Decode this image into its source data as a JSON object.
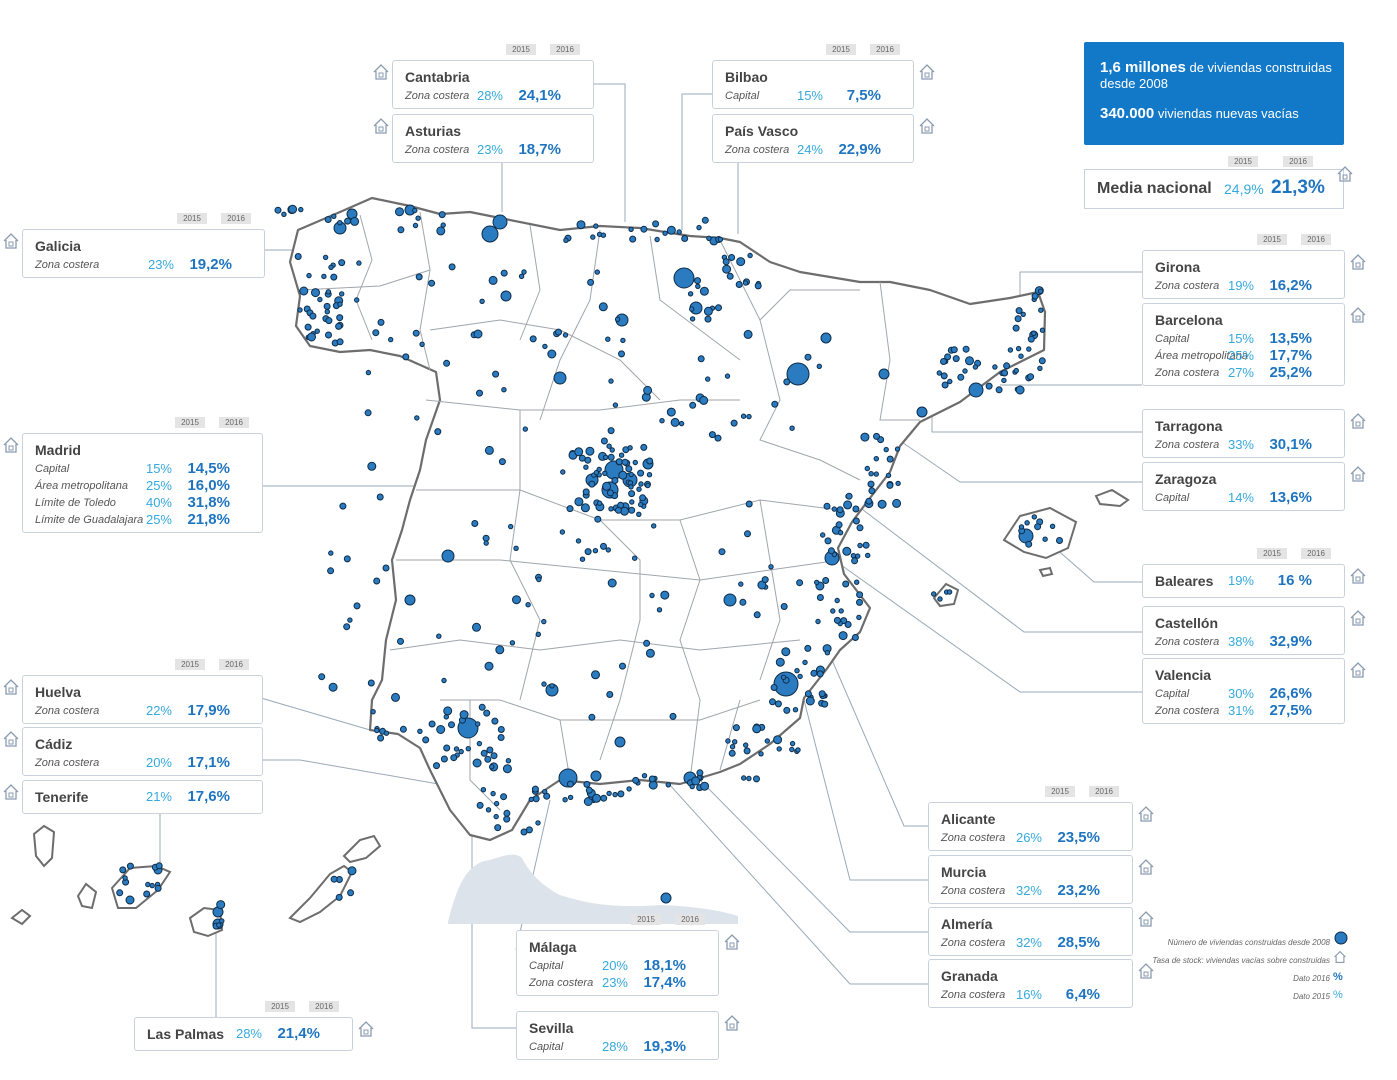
{
  "year_labels": {
    "y2015": "2015",
    "y2016": "2016"
  },
  "summary": {
    "line1_bold": "1,6 millones",
    "line1_rest": " de viviendas construidas desde 2008",
    "line2_bold": "340.000",
    "line2_rest": " viviendas nuevas vacías"
  },
  "national": {
    "label": "Media nacional",
    "v2015": "24,9%",
    "v2016": "21,3%"
  },
  "legend": {
    "dots": "Número de viviendas construidas desde 2008",
    "stock": "Tasa de stock: viviendas vacías sobre construidas",
    "d2016": "Dato 2016",
    "d2015": "Dato 2015",
    "pct": "%"
  },
  "colors": {
    "dot": "#2b7bc0",
    "dot_stroke": "#0d2c48",
    "v2015": "#36a9dc",
    "v2016": "#1f74c0",
    "box": "#1278c8",
    "lines": "#9aa9b8",
    "border": "#6d6d6d"
  },
  "regions": [
    {
      "name": "Cantabria",
      "rows": [
        {
          "label": "Zona costera",
          "v2015": "28%",
          "v2016": "24,1%"
        }
      ]
    },
    {
      "name": "Asturias",
      "rows": [
        {
          "label": "Zona costera",
          "v2015": "23%",
          "v2016": "18,7%"
        }
      ]
    },
    {
      "name": "Bilbao",
      "rows": [
        {
          "label": "Capital",
          "v2015": "15%",
          "v2016": "7,5%"
        }
      ]
    },
    {
      "name": "País Vasco",
      "rows": [
        {
          "label": "Zona costera",
          "v2015": "24%",
          "v2016": "22,9%"
        }
      ]
    },
    {
      "name": "Galicia",
      "rows": [
        {
          "label": "Zona costera",
          "v2015": "23%",
          "v2016": "19,2%"
        }
      ]
    },
    {
      "name": "Girona",
      "rows": [
        {
          "label": "Zona costera",
          "v2015": "19%",
          "v2016": "16,2%"
        }
      ]
    },
    {
      "name": "Barcelona",
      "rows": [
        {
          "label": "Capital",
          "v2015": "15%",
          "v2016": "13,5%"
        },
        {
          "label": "Área metropolitana",
          "v2015": "25%",
          "v2016": "17,7%"
        },
        {
          "label": "Zona costera",
          "v2015": "27%",
          "v2016": "25,2%"
        }
      ]
    },
    {
      "name": "Tarragona",
      "rows": [
        {
          "label": "Zona costera",
          "v2015": "33%",
          "v2016": "30,1%"
        }
      ]
    },
    {
      "name": "Zaragoza",
      "rows": [
        {
          "label": "Capital",
          "v2015": "14%",
          "v2016": "13,6%"
        }
      ]
    },
    {
      "name": "Madrid",
      "rows": [
        {
          "label": "Capital",
          "v2015": "15%",
          "v2016": "14,5%"
        },
        {
          "label": "Área metropolitana",
          "v2015": "25%",
          "v2016": "16,0%"
        },
        {
          "label": "Límite de Toledo",
          "v2015": "40%",
          "v2016": "31,8%"
        },
        {
          "label": "Límite de Guadalajara",
          "v2015": "25%",
          "v2016": "21,8%"
        }
      ]
    },
    {
      "name": "Baleares",
      "rows": [
        {
          "label": "",
          "v2015": "19%",
          "v2016": "16 %"
        }
      ]
    },
    {
      "name": "Castellón",
      "rows": [
        {
          "label": "Zona costera",
          "v2015": "38%",
          "v2016": "32,9%"
        }
      ]
    },
    {
      "name": "Valencia",
      "rows": [
        {
          "label": "Capital",
          "v2015": "30%",
          "v2016": "26,6%"
        },
        {
          "label": "Zona costera",
          "v2015": "31%",
          "v2016": "27,5%"
        }
      ]
    },
    {
      "name": "Huelva",
      "rows": [
        {
          "label": "Zona costera",
          "v2015": "22%",
          "v2016": "17,9%"
        }
      ]
    },
    {
      "name": "Cádiz",
      "rows": [
        {
          "label": "Zona costera",
          "v2015": "20%",
          "v2016": "17,1%"
        }
      ]
    },
    {
      "name": "Tenerife",
      "rows": [
        {
          "label": "",
          "v2015": "21%",
          "v2016": "17,6%"
        }
      ]
    },
    {
      "name": "Alicante",
      "rows": [
        {
          "label": "Zona costera",
          "v2015": "26%",
          "v2016": "23,5%"
        }
      ]
    },
    {
      "name": "Murcia",
      "rows": [
        {
          "label": "Zona costera",
          "v2015": "32%",
          "v2016": "23,2%"
        }
      ]
    },
    {
      "name": "Almería",
      "rows": [
        {
          "label": "Zona costera",
          "v2015": "32%",
          "v2016": "28,5%"
        }
      ]
    },
    {
      "name": "Granada",
      "rows": [
        {
          "label": "Zona costera",
          "v2015": "16%",
          "v2016": "6,4%"
        }
      ]
    },
    {
      "name": "Málaga",
      "rows": [
        {
          "label": "Capital",
          "v2015": "20%",
          "v2016": "18,1%"
        },
        {
          "label": "Zona costera",
          "v2015": "23%",
          "v2016": "17,4%"
        }
      ]
    },
    {
      "name": "Sevilla",
      "rows": [
        {
          "label": "Capital",
          "v2015": "28%",
          "v2016": "19,3%"
        }
      ]
    },
    {
      "name": "Las Palmas",
      "rows": [
        {
          "label": "",
          "v2015": "28%",
          "v2016": "21,4%"
        }
      ]
    }
  ]
}
